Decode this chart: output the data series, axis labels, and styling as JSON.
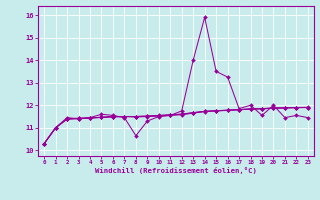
{
  "background_color": "#c8ecec",
  "grid_color": "#ffffff",
  "line_color": "#990099",
  "x_labels": [
    "0",
    "1",
    "2",
    "3",
    "4",
    "5",
    "6",
    "7",
    "8",
    "9",
    "10",
    "11",
    "12",
    "13",
    "14",
    "15",
    "16",
    "17",
    "18",
    "19",
    "20",
    "21",
    "22",
    "23"
  ],
  "xlabel": "Windchill (Refroidissement éolien,°C)",
  "ylabel_ticks": [
    10,
    11,
    12,
    13,
    14,
    15,
    16
  ],
  "ylim": [
    9.75,
    16.4
  ],
  "xlim": [
    -0.5,
    23.5
  ],
  "spiky": [
    10.3,
    11.0,
    11.45,
    11.4,
    11.45,
    11.6,
    11.55,
    11.45,
    10.65,
    11.3,
    11.5,
    11.55,
    11.75,
    14.0,
    15.9,
    13.5,
    13.25,
    11.85,
    12.0,
    11.55,
    12.0,
    11.45,
    11.55,
    11.45
  ],
  "smooth1": [
    10.3,
    11.0,
    11.4,
    11.42,
    11.44,
    11.47,
    11.5,
    11.5,
    11.48,
    11.5,
    11.52,
    11.55,
    11.58,
    11.65,
    11.72,
    11.75,
    11.77,
    11.8,
    11.83,
    11.84,
    11.87,
    11.88,
    11.89,
    11.9
  ],
  "smooth2": [
    10.3,
    11.0,
    11.4,
    11.42,
    11.44,
    11.46,
    11.49,
    11.5,
    11.5,
    11.52,
    11.54,
    11.57,
    11.6,
    11.67,
    11.73,
    11.75,
    11.78,
    11.8,
    11.83,
    11.85,
    11.87,
    11.88,
    11.9,
    11.9
  ],
  "smooth3": [
    10.3,
    11.0,
    11.38,
    11.4,
    11.43,
    11.46,
    11.49,
    11.5,
    11.5,
    11.52,
    11.55,
    11.58,
    11.61,
    11.67,
    11.73,
    11.76,
    11.78,
    11.81,
    11.84,
    11.85,
    11.88,
    11.89,
    11.9,
    11.91
  ],
  "marker": "D",
  "markersize": 2.0,
  "linewidth": 0.75
}
